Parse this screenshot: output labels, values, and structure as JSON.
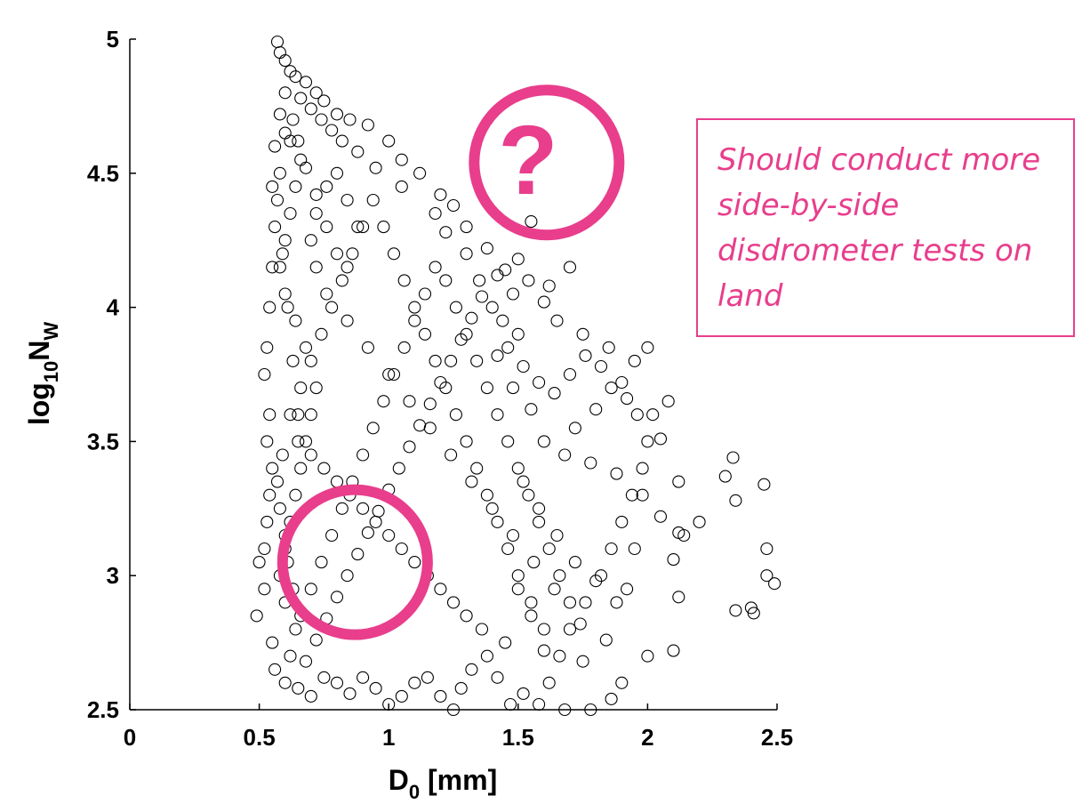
{
  "colors": {
    "annotation": "#e83e8c",
    "marker": "#000000",
    "axis": "#000000"
  },
  "annotation": {
    "question_mark": "?",
    "note": "Should conduct more side-by-side disdrometer tests on land"
  },
  "chart_data": {
    "type": "scatter",
    "marker": "open-circle",
    "xlabel": "D0 [mm]",
    "xlabel_main": "D",
    "xlabel_sub": "0",
    "xlabel_unit": " [mm]",
    "ylabel": "log10NW",
    "ylabel_pre": "log",
    "ylabel_sub1": "10",
    "ylabel_mid": "N",
    "ylabel_sub2": "W",
    "xlim": [
      0,
      2.5
    ],
    "ylim": [
      2.5,
      5
    ],
    "xticks": [
      0,
      0.5,
      1,
      1.5,
      2,
      2.5
    ],
    "xtick_labels": [
      "0",
      "0.5",
      "1",
      "1.5",
      "2",
      "2.5"
    ],
    "yticks": [
      2.5,
      3,
      3.5,
      4,
      4.5,
      5
    ],
    "ytick_labels": [
      "2.5",
      "3",
      "3.5",
      "4",
      "4.5",
      "5"
    ],
    "grid": false,
    "highlight_regions": [
      {
        "label": "",
        "center": [
          0.87,
          3.05
        ],
        "radius_x": 0.28
      },
      {
        "label": "?",
        "center": [
          1.61,
          4.54
        ],
        "radius_x": 0.28
      }
    ],
    "series": [
      {
        "points": [
          [
            0.57,
            4.99
          ],
          [
            0.58,
            4.95
          ],
          [
            0.6,
            4.92
          ],
          [
            0.62,
            4.88
          ],
          [
            0.64,
            4.86
          ],
          [
            0.68,
            4.84
          ],
          [
            0.72,
            4.8
          ],
          [
            0.75,
            4.77
          ],
          [
            0.8,
            4.72
          ],
          [
            0.85,
            4.7
          ],
          [
            0.92,
            4.68
          ],
          [
            1.0,
            4.62
          ],
          [
            1.05,
            4.55
          ],
          [
            1.12,
            4.5
          ],
          [
            1.2,
            4.42
          ],
          [
            1.25,
            4.38
          ],
          [
            1.3,
            4.3
          ],
          [
            1.38,
            4.22
          ],
          [
            1.45,
            4.14
          ],
          [
            1.55,
            4.32
          ],
          [
            1.62,
            4.08
          ],
          [
            1.7,
            4.15
          ],
          [
            1.6,
            4.02
          ],
          [
            1.65,
            3.95
          ],
          [
            1.75,
            3.9
          ],
          [
            1.85,
            3.85
          ],
          [
            1.95,
            3.8
          ],
          [
            2.0,
            3.85
          ],
          [
            2.02,
            3.6
          ],
          [
            2.05,
            3.51
          ],
          [
            2.08,
            3.65
          ],
          [
            1.9,
            3.72
          ],
          [
            1.8,
            3.62
          ],
          [
            1.72,
            3.55
          ],
          [
            1.68,
            3.45
          ],
          [
            1.78,
            3.42
          ],
          [
            1.88,
            3.38
          ],
          [
            1.98,
            3.3
          ],
          [
            2.05,
            3.22
          ],
          [
            2.12,
            3.16
          ],
          [
            2.14,
            3.15
          ],
          [
            2.2,
            3.2
          ],
          [
            2.12,
            3.35
          ],
          [
            2.3,
            3.37
          ],
          [
            2.33,
            3.44
          ],
          [
            2.45,
            3.34
          ],
          [
            2.34,
            3.28
          ],
          [
            2.46,
            3.1
          ],
          [
            2.46,
            3.0
          ],
          [
            2.49,
            2.97
          ],
          [
            2.34,
            2.87
          ],
          [
            2.4,
            2.88
          ],
          [
            2.41,
            2.86
          ],
          [
            2.12,
            2.92
          ],
          [
            2.0,
            2.7
          ],
          [
            2.1,
            2.72
          ],
          [
            1.9,
            2.6
          ],
          [
            1.86,
            2.54
          ],
          [
            1.78,
            2.5
          ],
          [
            1.68,
            2.5
          ],
          [
            1.58,
            2.52
          ],
          [
            1.52,
            2.56
          ],
          [
            1.47,
            2.52
          ],
          [
            1.62,
            2.6
          ],
          [
            1.75,
            2.68
          ],
          [
            1.84,
            2.76
          ],
          [
            1.88,
            2.9
          ],
          [
            1.8,
            2.98
          ],
          [
            1.72,
            3.05
          ],
          [
            1.95,
            3.1
          ],
          [
            2.1,
            3.06
          ],
          [
            1.92,
            2.95
          ],
          [
            1.6,
            2.8
          ],
          [
            1.55,
            2.9
          ],
          [
            1.5,
            3.0
          ],
          [
            1.65,
            3.15
          ],
          [
            1.58,
            3.25
          ],
          [
            1.52,
            3.35
          ],
          [
            1.6,
            3.5
          ],
          [
            1.55,
            3.62
          ],
          [
            1.48,
            3.7
          ],
          [
            1.42,
            3.82
          ],
          [
            1.5,
            3.9
          ],
          [
            1.4,
            4.0
          ],
          [
            1.35,
            4.1
          ],
          [
            1.3,
            4.2
          ],
          [
            1.22,
            4.28
          ],
          [
            1.18,
            4.35
          ],
          [
            1.05,
            4.45
          ],
          [
            0.95,
            4.52
          ],
          [
            0.88,
            4.58
          ],
          [
            0.82,
            4.62
          ],
          [
            0.78,
            4.66
          ],
          [
            0.74,
            4.7
          ],
          [
            0.7,
            4.74
          ],
          [
            0.66,
            4.78
          ],
          [
            0.6,
            4.8
          ],
          [
            0.58,
            4.72
          ],
          [
            0.56,
            4.6
          ],
          [
            0.55,
            4.45
          ],
          [
            0.56,
            4.3
          ],
          [
            0.55,
            4.15
          ],
          [
            0.54,
            4.0
          ],
          [
            0.53,
            3.85
          ],
          [
            0.52,
            3.75
          ],
          [
            0.54,
            3.6
          ],
          [
            0.53,
            3.5
          ],
          [
            0.55,
            3.4
          ],
          [
            0.54,
            3.3
          ],
          [
            0.53,
            3.2
          ],
          [
            0.52,
            3.1
          ],
          [
            0.5,
            3.05
          ],
          [
            0.49,
            2.85
          ],
          [
            0.52,
            2.95
          ],
          [
            0.55,
            2.75
          ],
          [
            0.56,
            2.65
          ],
          [
            0.6,
            2.6
          ],
          [
            0.62,
            2.7
          ],
          [
            0.65,
            2.58
          ],
          [
            0.7,
            2.55
          ],
          [
            0.75,
            2.62
          ],
          [
            0.8,
            2.6
          ],
          [
            0.85,
            2.56
          ],
          [
            0.9,
            2.62
          ],
          [
            0.95,
            2.58
          ],
          [
            1.0,
            2.52
          ],
          [
            1.05,
            2.55
          ],
          [
            1.1,
            2.6
          ],
          [
            1.15,
            2.62
          ],
          [
            1.2,
            2.55
          ],
          [
            1.25,
            2.5
          ],
          [
            1.28,
            2.58
          ],
          [
            1.32,
            2.65
          ],
          [
            1.38,
            2.7
          ],
          [
            1.42,
            2.62
          ],
          [
            1.45,
            2.75
          ],
          [
            1.36,
            2.8
          ],
          [
            1.3,
            2.85
          ],
          [
            1.25,
            2.9
          ],
          [
            1.2,
            2.95
          ],
          [
            1.15,
            3.0
          ],
          [
            1.1,
            3.05
          ],
          [
            1.05,
            3.1
          ],
          [
            1.0,
            3.15
          ],
          [
            0.95,
            3.2
          ],
          [
            0.9,
            3.25
          ],
          [
            0.85,
            3.3
          ],
          [
            0.8,
            3.35
          ],
          [
            0.75,
            3.4
          ],
          [
            0.7,
            3.45
          ],
          [
            0.65,
            3.5
          ],
          [
            0.62,
            3.6
          ],
          [
            0.66,
            3.7
          ],
          [
            0.7,
            3.8
          ],
          [
            0.74,
            3.9
          ],
          [
            0.78,
            4.0
          ],
          [
            0.82,
            4.1
          ],
          [
            0.86,
            4.2
          ],
          [
            0.9,
            4.3
          ],
          [
            0.94,
            4.4
          ],
          [
            0.98,
            4.3
          ],
          [
            1.02,
            4.2
          ],
          [
            1.06,
            4.1
          ],
          [
            1.1,
            4.0
          ],
          [
            1.14,
            3.9
          ],
          [
            1.18,
            3.8
          ],
          [
            1.22,
            3.7
          ],
          [
            1.26,
            3.6
          ],
          [
            1.3,
            3.5
          ],
          [
            1.34,
            3.4
          ],
          [
            1.38,
            3.3
          ],
          [
            1.42,
            3.2
          ],
          [
            1.46,
            3.1
          ],
          [
            1.5,
            2.95
          ],
          [
            1.55,
            2.85
          ],
          [
            1.6,
            2.72
          ],
          [
            1.66,
            2.7
          ],
          [
            1.7,
            2.8
          ],
          [
            1.76,
            2.9
          ],
          [
            1.82,
            3.0
          ],
          [
            1.86,
            3.1
          ],
          [
            1.9,
            3.2
          ],
          [
            1.94,
            3.3
          ],
          [
            1.98,
            3.4
          ],
          [
            2.0,
            3.5
          ],
          [
            1.96,
            3.6
          ],
          [
            1.92,
            3.66
          ],
          [
            1.86,
            3.7
          ],
          [
            1.82,
            3.78
          ],
          [
            1.76,
            3.82
          ],
          [
            1.7,
            3.75
          ],
          [
            1.64,
            3.68
          ],
          [
            1.58,
            3.72
          ],
          [
            1.52,
            3.78
          ],
          [
            1.46,
            3.85
          ],
          [
            1.44,
            3.95
          ],
          [
            1.48,
            4.05
          ],
          [
            1.54,
            4.1
          ],
          [
            1.5,
            4.18
          ],
          [
            1.42,
            4.12
          ],
          [
            1.36,
            4.04
          ],
          [
            1.32,
            3.96
          ],
          [
            1.28,
            3.88
          ],
          [
            1.24,
            3.8
          ],
          [
            1.2,
            3.72
          ],
          [
            1.16,
            3.64
          ],
          [
            1.12,
            3.56
          ],
          [
            1.08,
            3.48
          ],
          [
            1.04,
            3.4
          ],
          [
            1.0,
            3.32
          ],
          [
            0.96,
            3.24
          ],
          [
            0.92,
            3.16
          ],
          [
            0.88,
            3.08
          ],
          [
            0.84,
            3.0
          ],
          [
            0.8,
            2.92
          ],
          [
            0.76,
            2.84
          ],
          [
            0.72,
            2.76
          ],
          [
            0.68,
            2.68
          ],
          [
            0.64,
            2.8
          ],
          [
            0.6,
            2.9
          ],
          [
            0.58,
            3.0
          ],
          [
            0.6,
            3.1
          ],
          [
            0.62,
            3.2
          ],
          [
            0.64,
            3.3
          ],
          [
            0.66,
            3.4
          ],
          [
            0.68,
            3.5
          ],
          [
            0.7,
            3.6
          ],
          [
            0.72,
            3.7
          ],
          [
            0.68,
            3.85
          ],
          [
            0.64,
            3.95
          ],
          [
            0.6,
            4.05
          ],
          [
            0.58,
            4.15
          ],
          [
            0.6,
            4.25
          ],
          [
            0.62,
            4.35
          ],
          [
            0.64,
            4.45
          ],
          [
            0.66,
            4.55
          ],
          [
            0.62,
            4.62
          ],
          [
            0.58,
            4.5
          ],
          [
            0.57,
            4.4
          ],
          [
            0.59,
            4.2
          ],
          [
            0.61,
            4.0
          ],
          [
            0.63,
            3.8
          ],
          [
            0.65,
            3.6
          ],
          [
            0.59,
            3.45
          ],
          [
            0.57,
            3.35
          ],
          [
            0.58,
            3.25
          ],
          [
            0.6,
            3.15
          ],
          [
            0.61,
            3.05
          ],
          [
            0.63,
            2.95
          ],
          [
            0.66,
            2.85
          ],
          [
            0.7,
            2.95
          ],
          [
            0.74,
            3.05
          ],
          [
            0.78,
            3.15
          ],
          [
            0.82,
            3.25
          ],
          [
            0.86,
            3.35
          ],
          [
            0.9,
            3.45
          ],
          [
            0.94,
            3.55
          ],
          [
            0.98,
            3.65
          ],
          [
            1.02,
            3.75
          ],
          [
            1.06,
            3.85
          ],
          [
            1.1,
            3.95
          ],
          [
            1.14,
            4.05
          ],
          [
            1.18,
            4.15
          ],
          [
            1.22,
            4.1
          ],
          [
            1.26,
            4.0
          ],
          [
            1.3,
            3.9
          ],
          [
            1.34,
            3.8
          ],
          [
            1.38,
            3.7
          ],
          [
            1.42,
            3.6
          ],
          [
            1.46,
            3.5
          ],
          [
            1.5,
            3.4
          ],
          [
            1.54,
            3.3
          ],
          [
            1.58,
            3.2
          ],
          [
            1.62,
            3.1
          ],
          [
            1.66,
            3.0
          ],
          [
            1.7,
            2.9
          ],
          [
            1.74,
            2.82
          ],
          [
            1.64,
            2.95
          ],
          [
            1.56,
            3.05
          ],
          [
            1.48,
            3.15
          ],
          [
            1.4,
            3.25
          ],
          [
            1.32,
            3.35
          ],
          [
            1.24,
            3.45
          ],
          [
            1.16,
            3.55
          ],
          [
            1.08,
            3.65
          ],
          [
            1.0,
            3.75
          ],
          [
            0.92,
            3.85
          ],
          [
            0.84,
            3.95
          ],
          [
            0.76,
            4.05
          ],
          [
            0.72,
            4.15
          ],
          [
            0.7,
            4.25
          ],
          [
            0.72,
            4.35
          ],
          [
            0.76,
            4.45
          ],
          [
            0.8,
            4.5
          ],
          [
            0.84,
            4.4
          ],
          [
            0.88,
            4.3
          ],
          [
            0.84,
            4.15
          ],
          [
            0.8,
            4.2
          ],
          [
            0.76,
            4.3
          ],
          [
            0.72,
            4.42
          ],
          [
            0.68,
            4.52
          ],
          [
            0.65,
            4.62
          ],
          [
            0.63,
            4.7
          ],
          [
            0.6,
            4.65
          ]
        ]
      }
    ]
  }
}
